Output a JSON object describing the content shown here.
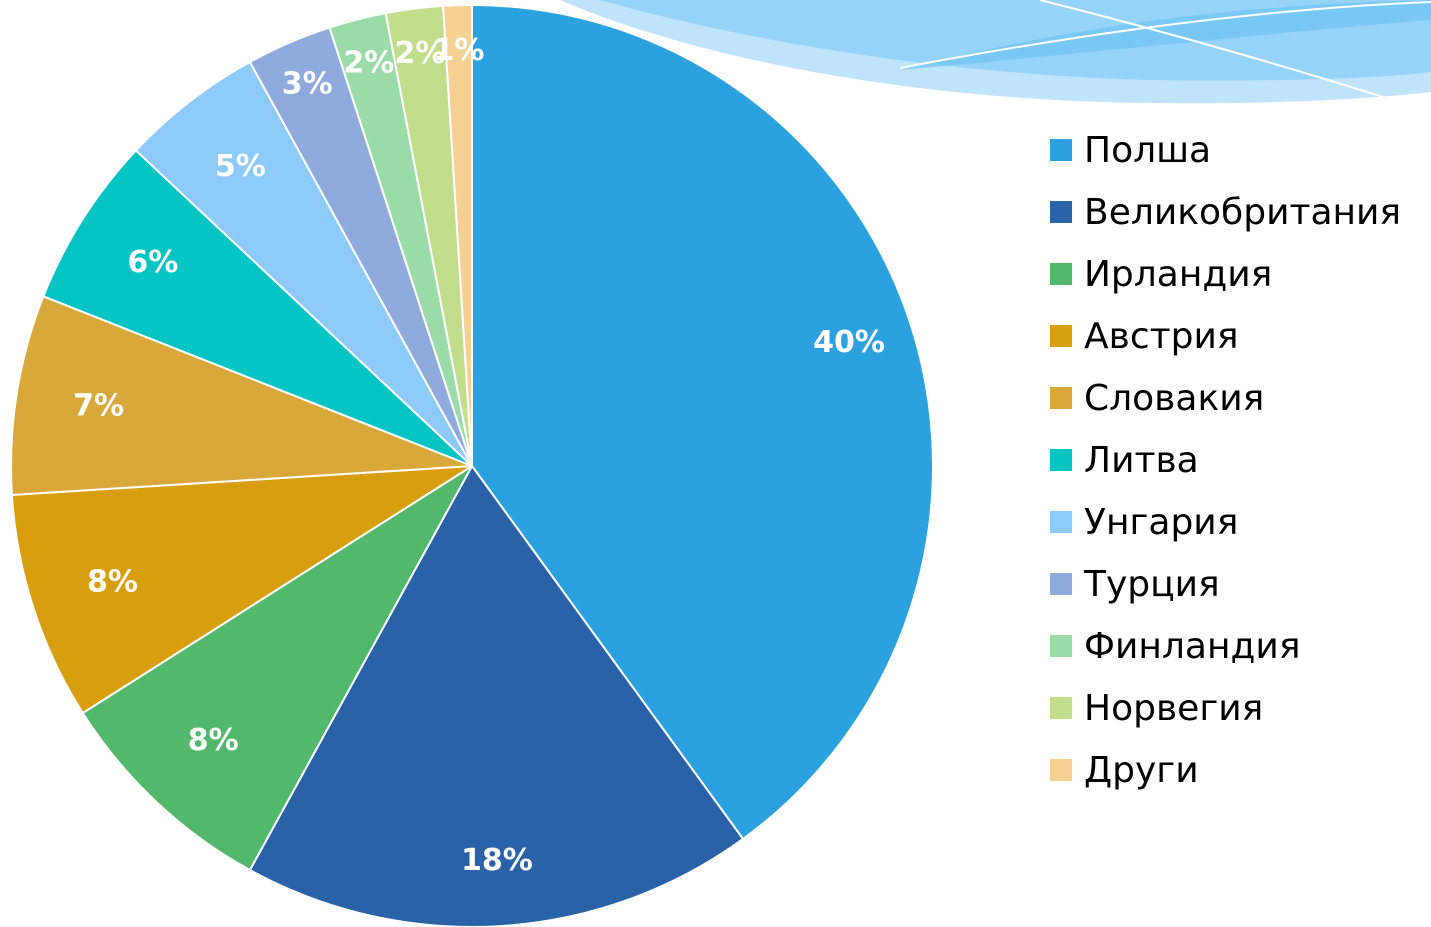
{
  "chart_data": {
    "type": "pie",
    "categories": [
      "Полша",
      "Великобритания",
      "Ирландия",
      "Австрия",
      "Словакия",
      "Литва",
      "Унгария",
      "Турция",
      "Финландия",
      "Норвегия",
      "Други"
    ],
    "values": [
      40,
      18,
      8,
      8,
      7,
      6,
      5,
      3,
      2,
      2,
      1
    ],
    "value_labels": [
      "40%",
      "18%",
      "8%",
      "8%",
      "7%",
      "6%",
      "5%",
      "3%",
      "2%",
      "2%",
      "1%"
    ],
    "colors": [
      "#2ca1df",
      "#2a62a8",
      "#52b86b",
      "#d99e0e",
      "#d9a83a",
      "#05c4c4",
      "#8ccafa",
      "#8faadc",
      "#9bdba8",
      "#c2de8c",
      "#f5d193"
    ],
    "legend": "right"
  }
}
